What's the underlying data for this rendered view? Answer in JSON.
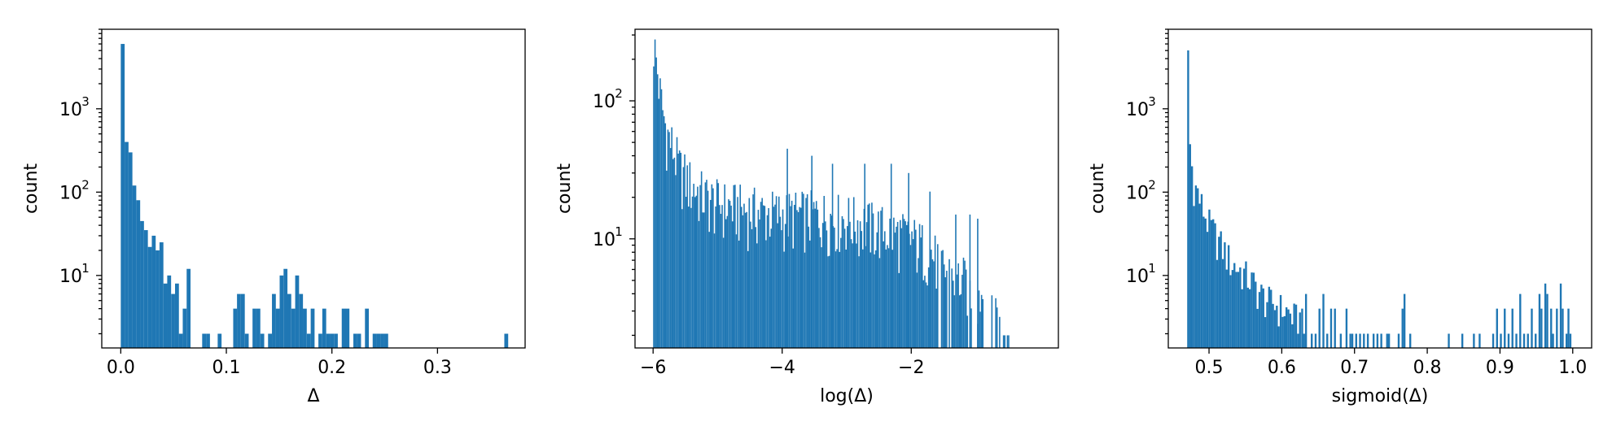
{
  "chart_data": [
    {
      "type": "bar",
      "subtype": "histogram",
      "xlabel": "Δ",
      "ylabel": "count",
      "xlim": [
        -0.018,
        0.383
      ],
      "ylim": [
        1.35,
        9000
      ],
      "yscale": "log",
      "grid": false,
      "color": "#1f77b4",
      "xticks": [
        0.0,
        0.1,
        0.2,
        0.3
      ],
      "xtick_labels": [
        "0.0",
        "0.1",
        "0.2",
        "0.3"
      ],
      "ytick_exponents": [
        1,
        2,
        3
      ],
      "bin_width": 0.00367,
      "bins": [
        {
          "x": 0.0,
          "count": 6000
        },
        {
          "x": 0.00367,
          "count": 400
        },
        {
          "x": 0.00734,
          "count": 300
        },
        {
          "x": 0.011,
          "count": 120
        },
        {
          "x": 0.0147,
          "count": 80
        },
        {
          "x": 0.0183,
          "count": 45
        },
        {
          "x": 0.022,
          "count": 35
        },
        {
          "x": 0.0257,
          "count": 22
        },
        {
          "x": 0.0294,
          "count": 30
        },
        {
          "x": 0.033,
          "count": 20
        },
        {
          "x": 0.0367,
          "count": 25
        },
        {
          "x": 0.0404,
          "count": 8
        },
        {
          "x": 0.044,
          "count": 10
        },
        {
          "x": 0.0477,
          "count": 6
        },
        {
          "x": 0.0514,
          "count": 8
        },
        {
          "x": 0.055,
          "count": 2
        },
        {
          "x": 0.0587,
          "count": 4
        },
        {
          "x": 0.0624,
          "count": 12
        },
        {
          "x": 0.0771,
          "count": 2
        },
        {
          "x": 0.0808,
          "count": 2
        },
        {
          "x": 0.0918,
          "count": 2
        },
        {
          "x": 0.1065,
          "count": 4
        },
        {
          "x": 0.1101,
          "count": 6
        },
        {
          "x": 0.1138,
          "count": 6
        },
        {
          "x": 0.1175,
          "count": 2
        },
        {
          "x": 0.1248,
          "count": 4
        },
        {
          "x": 0.1285,
          "count": 4
        },
        {
          "x": 0.1322,
          "count": 2
        },
        {
          "x": 0.1395,
          "count": 2
        },
        {
          "x": 0.1432,
          "count": 6
        },
        {
          "x": 0.1468,
          "count": 4
        },
        {
          "x": 0.1505,
          "count": 10
        },
        {
          "x": 0.1542,
          "count": 12
        },
        {
          "x": 0.1578,
          "count": 6
        },
        {
          "x": 0.1615,
          "count": 4
        },
        {
          "x": 0.1652,
          "count": 10
        },
        {
          "x": 0.1689,
          "count": 6
        },
        {
          "x": 0.1725,
          "count": 4
        },
        {
          "x": 0.1762,
          "count": 2
        },
        {
          "x": 0.1799,
          "count": 4
        },
        {
          "x": 0.1872,
          "count": 2
        },
        {
          "x": 0.1909,
          "count": 4
        },
        {
          "x": 0.1946,
          "count": 2
        },
        {
          "x": 0.1982,
          "count": 2
        },
        {
          "x": 0.2019,
          "count": 2
        },
        {
          "x": 0.2093,
          "count": 4
        },
        {
          "x": 0.2129,
          "count": 4
        },
        {
          "x": 0.2203,
          "count": 2
        },
        {
          "x": 0.2239,
          "count": 2
        },
        {
          "x": 0.2313,
          "count": 4
        },
        {
          "x": 0.2386,
          "count": 2
        },
        {
          "x": 0.2423,
          "count": 2
        },
        {
          "x": 0.2459,
          "count": 2
        },
        {
          "x": 0.2496,
          "count": 2
        },
        {
          "x": 0.3633,
          "count": 2
        }
      ]
    },
    {
      "type": "bar",
      "subtype": "histogram",
      "xlabel": "log(Δ)",
      "ylabel": "count",
      "xlim": [
        -6.28,
        0.28
      ],
      "ylim": [
        1.62,
        330
      ],
      "yscale": "log",
      "grid": false,
      "color": "#1f77b4",
      "xticks": [
        -6,
        -4,
        -2
      ],
      "xtick_labels": [
        "−6",
        "−4",
        "−2"
      ],
      "ytick_exponents": [
        1,
        2
      ],
      "bin_width": 0.02,
      "anchors": [
        [
          -6.0,
          260
        ],
        [
          -5.95,
          180
        ],
        [
          -5.9,
          110
        ],
        [
          -5.85,
          80
        ],
        [
          -5.8,
          60
        ],
        [
          -5.7,
          45
        ],
        [
          -5.6,
          32
        ],
        [
          -5.4,
          24
        ],
        [
          -5.2,
          20
        ],
        [
          -5.0,
          18
        ],
        [
          -4.5,
          16
        ],
        [
          -4.0,
          15
        ],
        [
          -3.5,
          15
        ],
        [
          -3.0,
          14
        ],
        [
          -2.5,
          12
        ],
        [
          -2.0,
          10
        ],
        [
          -1.7,
          8
        ],
        [
          -1.5,
          6
        ],
        [
          -1.2,
          5
        ],
        [
          -0.9,
          4
        ],
        [
          -0.7,
          3
        ],
        [
          -0.5,
          2
        ]
      ],
      "spikes": [
        [
          -3.93,
          45
        ],
        [
          -3.55,
          40
        ],
        [
          -3.23,
          35
        ],
        [
          -2.73,
          35
        ],
        [
          -2.32,
          35
        ],
        [
          -2.05,
          30
        ],
        [
          -1.72,
          22
        ],
        [
          -1.32,
          15
        ],
        [
          -1.1,
          15
        ],
        [
          -0.98,
          14
        ]
      ]
    },
    {
      "type": "bar",
      "subtype": "histogram",
      "xlabel": "sigmoid(Δ)",
      "ylabel": "count",
      "xlim": [
        0.444,
        1.026
      ],
      "ylim": [
        1.35,
        9000
      ],
      "yscale": "log",
      "grid": false,
      "color": "#1f77b4",
      "xticks": [
        0.5,
        0.6,
        0.7,
        0.8,
        0.9,
        1.0
      ],
      "xtick_labels": [
        "0.5",
        "0.6",
        "0.7",
        "0.8",
        "0.9",
        "1.0"
      ],
      "ytick_exponents": [
        1,
        2,
        3
      ],
      "bin_width": 0.00265,
      "anchors": [
        [
          0.47,
          5000
        ],
        [
          0.4727,
          350
        ],
        [
          0.4753,
          200
        ],
        [
          0.478,
          130
        ],
        [
          0.4806,
          110
        ],
        [
          0.4833,
          100
        ],
        [
          0.486,
          80
        ],
        [
          0.4886,
          70
        ],
        [
          0.4913,
          60
        ],
        [
          0.4966,
          45
        ],
        [
          0.502,
          38
        ],
        [
          0.51,
          28
        ],
        [
          0.52,
          20
        ],
        [
          0.53,
          14
        ],
        [
          0.54,
          12
        ],
        [
          0.55,
          10
        ],
        [
          0.56,
          8
        ],
        [
          0.57,
          6
        ],
        [
          0.58,
          5
        ],
        [
          0.6,
          4
        ],
        [
          0.62,
          3
        ]
      ],
      "tail_bins": [
        [
          0.6267,
          4
        ],
        [
          0.6293,
          2
        ],
        [
          0.632,
          6
        ],
        [
          0.6399,
          2
        ],
        [
          0.6452,
          2
        ],
        [
          0.6505,
          4
        ],
        [
          0.6559,
          6
        ],
        [
          0.6612,
          2
        ],
        [
          0.6665,
          4
        ],
        [
          0.6718,
          4
        ],
        [
          0.6798,
          2
        ],
        [
          0.6877,
          4
        ],
        [
          0.693,
          2
        ],
        [
          0.6957,
          2
        ],
        [
          0.701,
          2
        ],
        [
          0.7063,
          2
        ],
        [
          0.7116,
          2
        ],
        [
          0.717,
          2
        ],
        [
          0.7249,
          2
        ],
        [
          0.7302,
          2
        ],
        [
          0.7355,
          2
        ],
        [
          0.7435,
          2
        ],
        [
          0.7461,
          2
        ],
        [
          0.7594,
          2
        ],
        [
          0.7647,
          4
        ],
        [
          0.7674,
          6
        ],
        [
          0.7753,
          2
        ],
        [
          0.8283,
          2
        ],
        [
          0.8469,
          2
        ],
        [
          0.8628,
          2
        ],
        [
          0.8707,
          2
        ],
        [
          0.8893,
          2
        ],
        [
          0.8946,
          4
        ],
        [
          0.8999,
          2
        ],
        [
          0.9052,
          4
        ],
        [
          0.9105,
          2
        ],
        [
          0.9158,
          4
        ],
        [
          0.9212,
          2
        ],
        [
          0.9265,
          6
        ],
        [
          0.9318,
          2
        ],
        [
          0.9371,
          2
        ],
        [
          0.9424,
          4
        ],
        [
          0.9477,
          2
        ],
        [
          0.953,
          6
        ],
        [
          0.9557,
          4
        ],
        [
          0.961,
          8
        ],
        [
          0.9637,
          6
        ],
        [
          0.969,
          4
        ],
        [
          0.9716,
          2
        ],
        [
          0.9769,
          4
        ],
        [
          0.9822,
          8
        ],
        [
          0.9849,
          4
        ],
        [
          0.9902,
          2
        ],
        [
          0.9928,
          4
        ],
        [
          0.9955,
          2
        ]
      ]
    }
  ]
}
